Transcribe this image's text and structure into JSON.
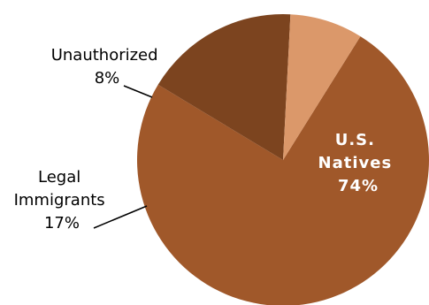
{
  "chart_data": {
    "type": "pie",
    "slices": [
      {
        "label": "U.S. Natives",
        "label_lines": [
          "U.S.",
          "Natives",
          "74%"
        ],
        "value": 74,
        "value_label": "74%",
        "color": "#A0582A"
      },
      {
        "label": "Legal Immigrants",
        "label_lines": [
          "Legal",
          "Immigrants",
          "17%"
        ],
        "value": 17,
        "value_label": "17%",
        "color": "#7C441F"
      },
      {
        "label": "Unauthorized",
        "label_lines": [
          "Unauthorized",
          "8%"
        ],
        "value": 8,
        "value_label": "8%",
        "color": "#DB986A"
      }
    ]
  }
}
